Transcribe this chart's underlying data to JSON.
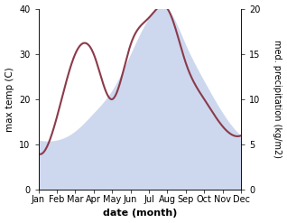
{
  "months": [
    "Jan",
    "Feb",
    "Mar",
    "Apr",
    "May",
    "Jun",
    "Jul",
    "Aug",
    "Sep",
    "Oct",
    "Nov",
    "Dec"
  ],
  "temp_values": [
    11,
    11,
    13,
    17,
    22,
    30,
    38,
    40,
    32,
    24,
    17,
    12
  ],
  "precip_values": [
    4,
    8,
    15,
    15,
    10,
    16,
    19,
    20,
    14,
    10,
    7,
    6
  ],
  "precip_color": "#8b3a4a",
  "temp_fill_color": "#b8c8e8",
  "temp_fill_alpha": 0.7,
  "xlabel": "date (month)",
  "ylabel_left": "max temp (C)",
  "ylabel_right": "med. precipitation (kg/m2)",
  "ylim_left": [
    0,
    40
  ],
  "ylim_right": [
    0,
    20
  ],
  "background_color": "#ffffff",
  "figsize": [
    3.18,
    2.47
  ],
  "dpi": 100
}
